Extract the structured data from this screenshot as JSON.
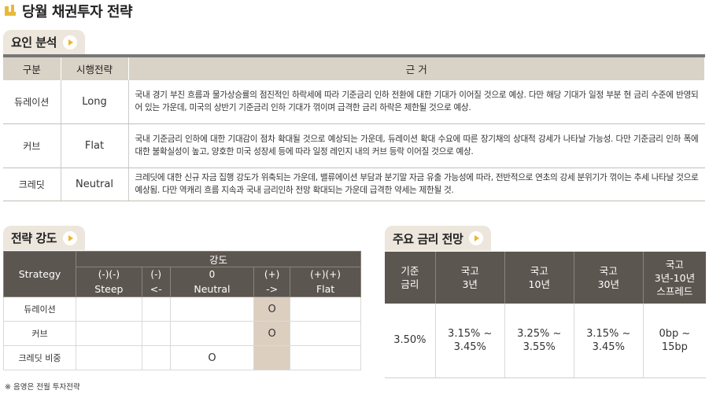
{
  "title": "당월 채권투자 전략",
  "factor_section": {
    "title": "요인 분석",
    "headers": [
      "구분",
      "시행전략",
      "근 거"
    ],
    "rows": [
      {
        "category": "듀레이션",
        "strategy": "Long",
        "reason": "국내 경기 부진 흐름과 물가상승률의 점진적인 하락세에 따라 기준금리 인하 전환에 대한 기대가 이어질 것으로 예상. 다만 해당 기대가 일정 부분 현 금리 수준에 반영되어 있는 가운데, 미국의 상반기 기준금리 인하 기대가 꺾이며 급격한 금리 하락은 제한될 것으로 예상."
      },
      {
        "category": "커브",
        "strategy": "Flat",
        "reason": "국내 기준금리 인하에 대한 기대감이 점차 확대될 것으로 예상되는 가운데, 듀레이션 확대 수요에 따른 장기채의 상대적 강세가 나타날 가능성. 다만 기준금리 인하 폭에 대한 불확실성이 높고, 양호한 미국 성장세 등에 따라 일정 레인지 내의 커브 등락 이어질 것으로 예상."
      },
      {
        "category": "크레딧",
        "strategy": "Neutral",
        "reason": "크레딧에 대한 신규 자금 집행 강도가 위축되는 가운데, 밸류에이션 부담과 분기말 자금 유출 가능성에 따라, 전반적으로 연초의 강세 분위기가 꺾이는 추세 나타날 것으로 예상됨. 다만 역캐리 흐름 지속과 국내 금리인하 전망 확대되는 가운데 급격한 약세는 제한될 것."
      }
    ]
  },
  "strength_section": {
    "title": "전략 강도",
    "strategy_header": "Strategy",
    "group_header": "강도",
    "levels": [
      {
        "top": "(-)(-)",
        "bottom": "Steep"
      },
      {
        "top": "(-)",
        "bottom": "<-"
      },
      {
        "top": "0",
        "bottom": "Neutral"
      },
      {
        "top": "(+)",
        "bottom": "->"
      },
      {
        "top": "(+)(+)",
        "bottom": "Flat"
      }
    ],
    "rows": [
      {
        "label": "듀레이션",
        "cells": [
          "",
          "",
          "",
          "O",
          ""
        ]
      },
      {
        "label": "커브",
        "cells": [
          "",
          "",
          "",
          "O",
          ""
        ]
      },
      {
        "label": "크레딧 비중",
        "cells": [
          "",
          "",
          "O",
          "",
          ""
        ]
      }
    ],
    "highlight_color": "#dccfc0",
    "note": "※ 음영은 전월 투자전략"
  },
  "rate_section": {
    "title": "주요 금리 전망",
    "headers": [
      [
        "기준",
        "금리"
      ],
      [
        "국고",
        "3년"
      ],
      [
        "국고",
        "10년"
      ],
      [
        "국고",
        "30년"
      ],
      [
        "국고",
        "3년-10년",
        "스프레드"
      ]
    ],
    "values": [
      [
        "3.50%"
      ],
      [
        "3.15% ~",
        "3.45%"
      ],
      [
        "3.25% ~",
        "3.55%"
      ],
      [
        "3.15% ~",
        "3.45%"
      ],
      [
        "0bp ~",
        "15bp"
      ]
    ]
  },
  "colors": {
    "accent": "#e8b93a",
    "header_dark": "#5c5650",
    "header_light": "#d9d2c6",
    "tab": "#ece6dc"
  },
  "icons": [
    "title-bracket-icon",
    "play-icon"
  ]
}
